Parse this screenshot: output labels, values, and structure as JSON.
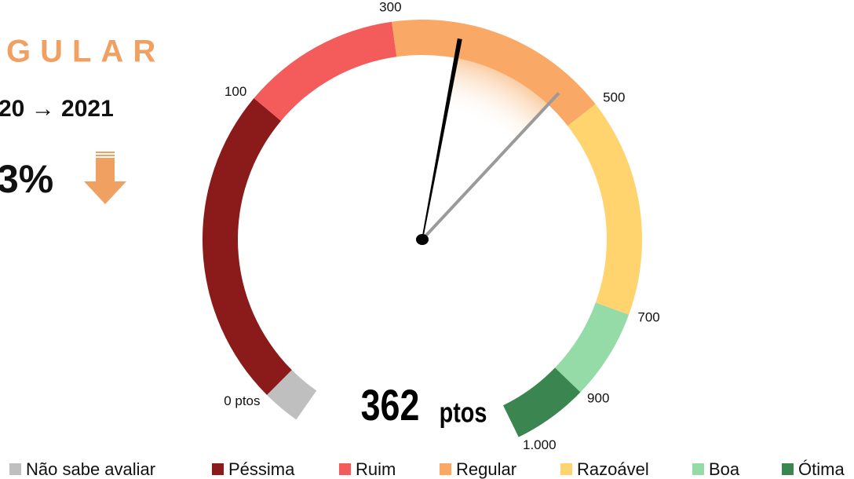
{
  "chart_data": {
    "type": "gauge",
    "status": "GULAR",
    "period": "20 → 2021",
    "change": "3%",
    "categories": [
      "Não sabe avaliar",
      "Péssima",
      "Ruim",
      "Regular",
      "Razoável",
      "Boa",
      "Ótima"
    ],
    "values": [
      10,
      85,
      42,
      60,
      58,
      24,
      20
    ],
    "colors": [
      "#bfbfbf",
      "#8b1a1a",
      "#f45b5b",
      "#f9a866",
      "#ffd36e",
      "#94dba8",
      "#3a8550"
    ],
    "ticks": [
      {
        "value": 0,
        "label": "0 ptos"
      },
      100,
      300,
      500,
      700,
      900,
      {
        "value": 1000,
        "label": "1.000"
      }
    ],
    "value": 362,
    "value_unit": "ptos",
    "previous_value": 470
  }
}
